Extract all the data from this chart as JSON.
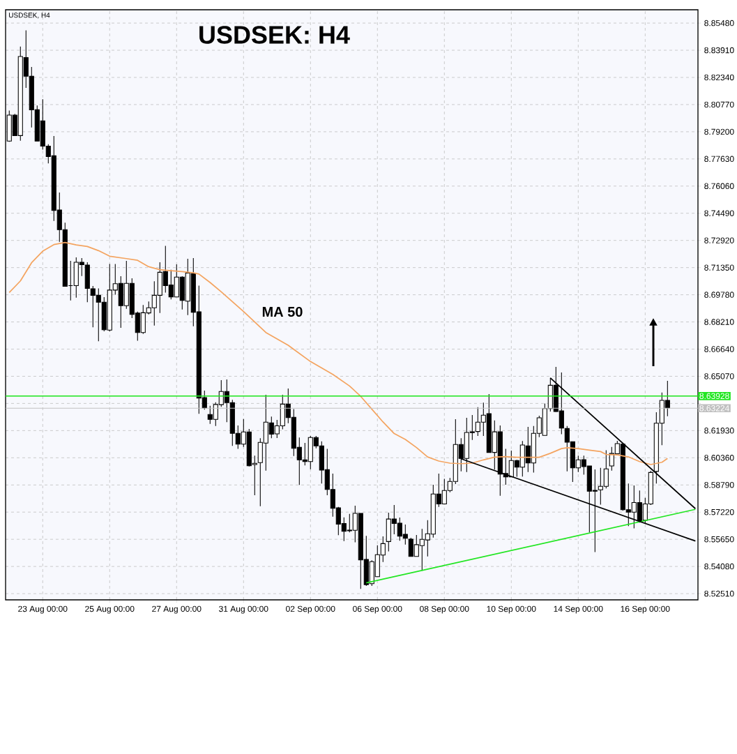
{
  "chart_data": {
    "type": "candlestick",
    "title": "USDSEK: H4",
    "subtitle": "USDSEK, H4",
    "color": "#000000",
    "categories": [
      null,
      null,
      null,
      null,
      null,
      null,
      "23 Aug 00:00",
      null,
      null,
      null,
      null,
      null,
      null,
      null,
      null,
      null,
      null,
      null,
      "25 Aug 00:00",
      null,
      null,
      null,
      null,
      null,
      null,
      null,
      null,
      null,
      null,
      null,
      "27 Aug 00:00",
      null,
      null,
      null,
      null,
      null,
      null,
      null,
      null,
      null,
      null,
      null,
      "31 Aug 00:00",
      null,
      null,
      null,
      null,
      null,
      null,
      null,
      null,
      null,
      null,
      null,
      "02 Sep 00:00",
      null,
      null,
      null,
      null,
      null,
      null,
      null,
      null,
      null,
      null,
      null,
      "06 Sep 00:00",
      null,
      null,
      null,
      null,
      null,
      null,
      null,
      null,
      null,
      null,
      null,
      "08 Sep 00:00",
      null,
      null,
      null,
      null,
      null,
      null,
      null,
      null,
      null,
      null,
      null,
      "10 Sep 00:00",
      null,
      null,
      null,
      null,
      null,
      null,
      null,
      null,
      null,
      null,
      null,
      "14 Sep 00:00",
      null,
      null,
      null,
      null,
      null,
      null,
      null,
      null,
      null,
      null,
      null,
      "16 Sep 00:00",
      null,
      null,
      null,
      null,
      null,
      null,
      null,
      null,
      null
    ],
    "ohlc": [
      [
        8.7866,
        8.8043,
        8.7862,
        8.8016
      ],
      [
        8.8016,
        8.8023,
        8.7898,
        8.7898
      ],
      [
        8.7898,
        8.8412,
        8.7868,
        8.8355
      ],
      [
        8.8349,
        8.8506,
        8.8174,
        8.8241
      ],
      [
        8.8241,
        8.8294,
        8.7945,
        8.8047
      ],
      [
        8.8047,
        8.8072,
        8.7866,
        8.7866
      ],
      [
        8.7983,
        8.8108,
        8.7817,
        8.7837
      ],
      [
        8.7837,
        8.7848,
        8.7737,
        8.7777
      ],
      [
        8.7781,
        8.7895,
        8.7405,
        8.7465
      ],
      [
        8.7468,
        8.7569,
        8.7284,
        8.7354
      ],
      [
        8.7354,
        8.7395,
        8.7027,
        8.7027
      ],
      [
        8.7031,
        8.7174,
        8.6945,
        8.7031
      ],
      [
        8.7031,
        8.7194,
        8.6961,
        8.7166
      ],
      [
        8.7166,
        8.719,
        8.7086,
        8.7152
      ],
      [
        8.715,
        8.7166,
        8.6935,
        8.7015
      ],
      [
        8.7013,
        8.7029,
        8.679,
        8.6975
      ],
      [
        8.6975,
        8.7015,
        8.6709,
        8.6935
      ],
      [
        8.6935,
        8.6964,
        8.6767,
        8.6776
      ],
      [
        8.6774,
        8.7156,
        8.6767,
        8.7005
      ],
      [
        8.7005,
        8.7156,
        8.6978,
        8.7042
      ],
      [
        8.7044,
        8.7085,
        8.6787,
        8.6915
      ],
      [
        8.6915,
        8.7174,
        8.6897,
        8.7044
      ],
      [
        8.7044,
        8.7073,
        8.6843,
        8.6865
      ],
      [
        8.6872,
        8.6881,
        8.6712,
        8.676
      ],
      [
        8.676,
        8.6919,
        8.6752,
        8.6874
      ],
      [
        8.6873,
        8.6939,
        8.6865,
        8.6903
      ],
      [
        8.6903,
        8.7056,
        8.68,
        8.6975
      ],
      [
        8.6975,
        8.7166,
        8.6873,
        8.7108
      ],
      [
        8.7112,
        8.7261,
        8.6991,
        8.7031
      ],
      [
        8.7035,
        8.7123,
        8.6951,
        8.6965
      ],
      [
        8.6965,
        8.7154,
        8.6965,
        8.708
      ],
      [
        8.708,
        8.7085,
        8.6893,
        8.6945
      ],
      [
        8.6941,
        8.7186,
        8.6861,
        8.7104
      ],
      [
        8.7101,
        8.719,
        8.6796,
        8.6877
      ],
      [
        8.688,
        8.7031,
        8.629,
        8.6381
      ],
      [
        8.6384,
        8.6424,
        8.6314,
        8.6325
      ],
      [
        8.6286,
        8.6337,
        8.6232,
        8.6258
      ],
      [
        8.6258,
        8.6357,
        8.622,
        8.6344
      ],
      [
        8.6343,
        8.6485,
        8.633,
        8.6419
      ],
      [
        8.6419,
        8.6489,
        8.6242,
        8.6355
      ],
      [
        8.6355,
        8.6371,
        8.6105,
        8.6177
      ],
      [
        8.6177,
        8.6223,
        8.6088,
        8.6115
      ],
      [
        8.6115,
        8.626,
        8.6099,
        8.6185
      ],
      [
        8.6185,
        8.6203,
        8.5986,
        8.599
      ],
      [
        8.5997,
        8.6048,
        8.582,
        8.6004
      ],
      [
        8.6008,
        8.6149,
        8.5756,
        8.6125
      ],
      [
        8.6121,
        8.64,
        8.5962,
        8.6242
      ],
      [
        8.6238,
        8.6274,
        8.6149,
        8.6172
      ],
      [
        8.6174,
        8.6255,
        8.615,
        8.6221
      ],
      [
        8.6221,
        8.64,
        8.62,
        8.6346
      ],
      [
        8.6346,
        8.6436,
        8.6236,
        8.6268
      ],
      [
        8.627,
        8.6317,
        8.6046,
        8.6091
      ],
      [
        8.6097,
        8.6153,
        8.5879,
        8.6024
      ],
      [
        8.6024,
        8.6122,
        8.5992,
        8.6014
      ],
      [
        8.6014,
        8.6162,
        8.597,
        8.6153
      ],
      [
        8.6153,
        8.6162,
        8.6091,
        8.6105
      ],
      [
        8.6105,
        8.6131,
        8.5887,
        8.5965
      ],
      [
        8.5968,
        8.6088,
        8.582,
        8.5853
      ],
      [
        8.5853,
        8.5945,
        8.5696,
        8.5744
      ],
      [
        8.5747,
        8.5752,
        8.5589,
        8.5652
      ],
      [
        8.5656,
        8.5692,
        8.5555,
        8.5611
      ],
      [
        8.5618,
        8.5712,
        8.5605,
        8.5614
      ],
      [
        8.5617,
        8.5759,
        8.5548,
        8.5715
      ],
      [
        8.5715,
        8.5715,
        8.5278,
        8.5446
      ],
      [
        8.5449,
        8.5585,
        8.5296,
        8.5303
      ],
      [
        8.5309,
        8.5444,
        8.5296,
        8.5436
      ],
      [
        8.5349,
        8.553,
        8.5349,
        8.5476
      ],
      [
        8.5474,
        8.5582,
        8.5434,
        8.554
      ],
      [
        8.5552,
        8.5719,
        8.5495,
        8.5682
      ],
      [
        8.5682,
        8.5763,
        8.5594,
        8.5656
      ],
      [
        8.5658,
        8.5691,
        8.5557,
        8.5583
      ],
      [
        8.5594,
        8.565,
        8.5534,
        8.5571
      ],
      [
        8.5566,
        8.5574,
        8.5466,
        8.5466
      ],
      [
        8.5466,
        8.559,
        8.5466,
        8.5534
      ],
      [
        8.5528,
        8.5625,
        8.5383,
        8.5565
      ],
      [
        8.5561,
        8.5675,
        8.5466,
        8.5597
      ],
      [
        8.5595,
        8.588,
        8.5575,
        8.5827
      ],
      [
        8.5827,
        8.5945,
        8.5752,
        8.5769
      ],
      [
        8.5769,
        8.5914,
        8.5769,
        8.5847
      ],
      [
        8.5847,
        8.5919,
        8.5837,
        8.5899
      ],
      [
        8.5899,
        8.6259,
        8.5884,
        8.6113
      ],
      [
        8.6113,
        8.6149,
        8.5958,
        8.6032
      ],
      [
        8.6032,
        8.6267,
        8.5954,
        8.6182
      ],
      [
        8.6186,
        8.6283,
        8.6139,
        8.6181
      ],
      [
        8.6188,
        8.6328,
        8.6162,
        8.6242
      ],
      [
        8.6242,
        8.6355,
        8.6162,
        8.6282
      ],
      [
        8.6291,
        8.6404,
        8.6067,
        8.6067
      ],
      [
        8.6067,
        8.6252,
        8.5968,
        8.6186
      ],
      [
        8.6186,
        8.6223,
        8.5817,
        8.5942
      ],
      [
        8.5945,
        8.6088,
        8.588,
        8.5926
      ],
      [
        8.5926,
        8.6078,
        8.5926,
        8.602
      ],
      [
        8.602,
        8.6024,
        8.5926,
        8.5982
      ],
      [
        8.5982,
        8.6133,
        8.5927,
        8.611
      ],
      [
        8.6105,
        8.6215,
        8.5954,
        8.6006
      ],
      [
        8.6006,
        8.622,
        8.5951,
        8.6177
      ],
      [
        8.6177,
        8.6279,
        8.6155,
        8.6267
      ],
      [
        8.6165,
        8.635,
        8.6165,
        8.6321
      ],
      [
        8.6321,
        8.6498,
        8.6303,
        8.6455
      ],
      [
        8.6455,
        8.6561,
        8.6301,
        8.6303
      ],
      [
        8.6307,
        8.6529,
        8.6172,
        8.6208
      ],
      [
        8.6205,
        8.622,
        8.5958,
        8.6126
      ],
      [
        8.6129,
        8.6129,
        8.5896,
        8.5978
      ],
      [
        8.5978,
        8.6048,
        8.5954,
        8.6024
      ],
      [
        8.6025,
        8.6048,
        8.5938,
        8.5985
      ],
      [
        8.5989,
        8.5989,
        8.5605,
        8.5843
      ],
      [
        8.5848,
        8.5969,
        8.5491,
        8.5843
      ],
      [
        8.5851,
        8.5978,
        8.5765,
        8.5871
      ],
      [
        8.5871,
        8.608,
        8.5859,
        8.5972
      ],
      [
        8.5989,
        8.6099,
        8.5962,
        8.6061
      ],
      [
        8.6059,
        8.6134,
        8.6059,
        8.6118
      ],
      [
        8.6115,
        8.6122,
        8.573,
        8.5736
      ],
      [
        8.5736,
        8.5887,
        8.5641,
        8.5722
      ],
      [
        8.5722,
        8.5876,
        8.5628,
        8.5777
      ],
      [
        8.5777,
        8.5847,
        8.5661,
        8.5672
      ],
      [
        8.5675,
        8.5804,
        8.5658,
        8.5769
      ],
      [
        8.5769,
        8.5961,
        8.5763,
        8.5951
      ],
      [
        8.5957,
        8.6299,
        8.5887,
        8.6236
      ],
      [
        8.6236,
        8.6413,
        8.6109,
        8.6368
      ],
      [
        8.6368,
        8.6481,
        8.6276,
        8.6325
      ],
      null,
      null,
      null,
      null,
      null
    ],
    "series": [
      {
        "type": "line",
        "name": "MA 50",
        "color": "#f4a460",
        "values": [
          8.6991,
          null,
          8.7058,
          null,
          8.7163,
          null,
          8.723,
          null,
          8.7268,
          null,
          8.728,
          null,
          8.7266,
          null,
          8.7257,
          null,
          8.7233,
          null,
          8.7201,
          null,
          null,
          8.7187,
          null,
          8.7177,
          null,
          8.714,
          null,
          8.7123,
          null,
          8.7117,
          null,
          8.7112,
          null,
          8.7105,
          8.7098,
          null,
          8.7049,
          null,
          8.6995,
          null,
          null,
          null,
          8.6881,
          null,
          null,
          null,
          8.676,
          null,
          null,
          null,
          8.6686,
          null,
          null,
          null,
          8.6592,
          null,
          null,
          null,
          8.6518,
          null,
          null,
          8.6451,
          null,
          8.6391,
          null,
          8.6317,
          null,
          8.6243,
          null,
          8.6176,
          null,
          8.6142,
          null,
          8.6095,
          null,
          8.6041,
          null,
          8.6017,
          null,
          8.6005,
          null,
          8.6002,
          null,
          8.6005,
          null,
          8.6024,
          null,
          8.604,
          null,
          8.6043,
          null,
          8.6039,
          null,
          8.6039,
          null,
          8.6039,
          null,
          8.6062,
          null,
          8.6089,
          8.6094,
          null,
          8.6089,
          null,
          8.608,
          null,
          8.6072,
          8.6055,
          null,
          8.6053,
          null,
          8.6041,
          null,
          8.6014,
          null,
          8.5997,
          null,
          8.601,
          8.6032,
          null,
          null,
          null,
          null,
          null
        ]
      },
      {
        "type": "line",
        "color": "#22e622",
        "values": [
          null,
          null,
          null,
          null,
          null,
          null,
          null,
          null,
          null,
          null,
          null,
          null,
          null,
          null,
          null,
          null,
          null,
          null,
          null,
          null,
          null,
          null,
          null,
          null,
          null,
          null,
          null,
          null,
          null,
          null,
          null,
          null,
          null,
          null,
          null,
          null,
          null,
          null,
          null,
          null,
          null,
          null,
          null,
          null,
          null,
          null,
          null,
          null,
          null,
          null,
          null,
          null,
          null,
          null,
          null,
          null,
          null,
          null,
          null,
          null,
          null,
          null,
          null,
          null,
          8.5313,
          null,
          null,
          null,
          null,
          null,
          null,
          null,
          null,
          null,
          null,
          null,
          null,
          null,
          null,
          null,
          null,
          null,
          null,
          null,
          null,
          null,
          null,
          null,
          null,
          null,
          null,
          null,
          null,
          null,
          null,
          null,
          null,
          null,
          null,
          null,
          null,
          null,
          null,
          null,
          null,
          null,
          null,
          null,
          null,
          null,
          null,
          null,
          null,
          null,
          null,
          null,
          null,
          null,
          null,
          null,
          null,
          null,
          null,
          8.5738
        ]
      },
      {
        "type": "line",
        "color": "#000000",
        "values": [
          null,
          null,
          null,
          null,
          null,
          null,
          null,
          null,
          null,
          null,
          null,
          null,
          null,
          null,
          null,
          null,
          null,
          null,
          null,
          null,
          null,
          null,
          null,
          null,
          null,
          null,
          null,
          null,
          null,
          null,
          null,
          null,
          null,
          null,
          null,
          null,
          null,
          null,
          null,
          null,
          null,
          null,
          null,
          null,
          null,
          null,
          null,
          null,
          null,
          null,
          null,
          null,
          null,
          null,
          null,
          null,
          null,
          null,
          null,
          null,
          null,
          null,
          null,
          null,
          null,
          null,
          null,
          null,
          null,
          null,
          null,
          null,
          null,
          null,
          null,
          null,
          null,
          null,
          null,
          null,
          null,
          8.603,
          null,
          null,
          null,
          null,
          null,
          null,
          null,
          null,
          null,
          null,
          null,
          null,
          null,
          null,
          null,
          null,
          null,
          null,
          null,
          null,
          null,
          null,
          null,
          null,
          null,
          null,
          null,
          null,
          null,
          null,
          null,
          null,
          null,
          null,
          null,
          null,
          null,
          null,
          null,
          null,
          null,
          8.5555
        ]
      },
      {
        "type": "line",
        "color": "#000000",
        "values": [
          null,
          null,
          null,
          null,
          null,
          null,
          null,
          null,
          null,
          null,
          null,
          null,
          null,
          null,
          null,
          null,
          null,
          null,
          null,
          null,
          null,
          null,
          null,
          null,
          null,
          null,
          null,
          null,
          null,
          null,
          null,
          null,
          null,
          null,
          null,
          null,
          null,
          null,
          null,
          null,
          null,
          null,
          null,
          null,
          null,
          null,
          null,
          null,
          null,
          null,
          null,
          null,
          null,
          null,
          null,
          null,
          null,
          null,
          null,
          null,
          null,
          null,
          null,
          null,
          null,
          null,
          null,
          null,
          null,
          null,
          null,
          null,
          null,
          null,
          null,
          null,
          null,
          null,
          null,
          null,
          null,
          null,
          null,
          null,
          null,
          null,
          null,
          null,
          null,
          null,
          null,
          null,
          null,
          null,
          null,
          null,
          null,
          8.6497,
          null,
          null,
          null,
          null,
          null,
          null,
          null,
          null,
          null,
          null,
          null,
          null,
          null,
          null,
          null,
          null,
          null,
          null,
          null,
          null,
          null,
          null,
          null,
          null,
          null,
          8.5742
        ]
      }
    ],
    "ref_lines": [
      {
        "axis": "y",
        "value": 8.63928,
        "label": "8.63928",
        "color": "#22e622"
      },
      {
        "axis": "y",
        "value": 8.63224,
        "label": "8.63224",
        "color": "#c0c0c0"
      }
    ],
    "ylim": [
      8.5215,
      8.8625
    ],
    "yticks": [
      {
        "value": 8.5251,
        "label": "8.52510"
      },
      {
        "value": 8.5408,
        "label": "8.54080"
      },
      {
        "value": 8.5565,
        "label": "8.55650"
      },
      {
        "value": 8.5722,
        "label": "8.57220"
      },
      {
        "value": 8.5879,
        "label": "8.58790"
      },
      {
        "value": 8.6036,
        "label": "8.60360"
      },
      {
        "value": 8.6193,
        "label": "8.61930"
      },
      {
        "value": 8.635,
        "label": null
      },
      {
        "value": 8.6507,
        "label": "8.65070"
      },
      {
        "value": 8.6664,
        "label": "8.66640"
      },
      {
        "value": 8.6821,
        "label": "8.68210"
      },
      {
        "value": 8.6978,
        "label": "8.69780"
      },
      {
        "value": 8.7135,
        "label": "8.71350"
      },
      {
        "value": 8.7292,
        "label": "8.72920"
      },
      {
        "value": 8.7449,
        "label": "8.74490"
      },
      {
        "value": 8.7606,
        "label": "8.76060"
      },
      {
        "value": 8.7763,
        "label": "8.77630"
      },
      {
        "value": 8.792,
        "label": "8.79200"
      },
      {
        "value": 8.8077,
        "label": "8.80770"
      },
      {
        "value": 8.8234,
        "label": "8.82340"
      },
      {
        "value": 8.8391,
        "label": "8.83910"
      },
      {
        "value": 8.8548,
        "label": "8.85480"
      }
    ],
    "grid": true
  }
}
